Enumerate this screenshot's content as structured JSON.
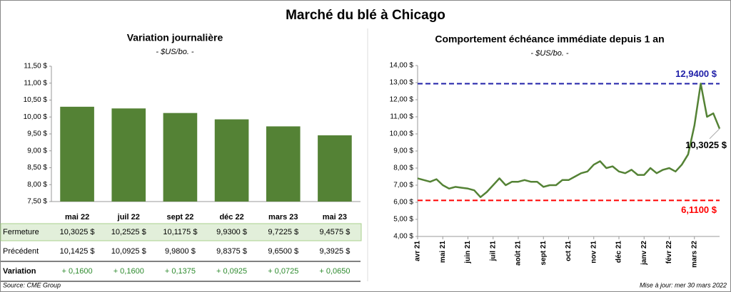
{
  "title": "Marché du blé à Chicago",
  "source": "Source: CME Group",
  "updated": "Mise à jour: mer 30 mars 2022",
  "chart_data": [
    {
      "type": "bar",
      "title": "Variation journalière",
      "subtitle": "- $US/bo. -",
      "color": "#548235",
      "grid": false,
      "categories": [
        "mai 22",
        "juil 22",
        "sept 22",
        "déc 22",
        "mars 23",
        "mai 23"
      ],
      "values": [
        10.3025,
        10.2525,
        10.1175,
        9.93,
        9.7225,
        9.4575
      ],
      "ylim": [
        7.5,
        11.5
      ],
      "yticks": [
        {
          "value": 7.5,
          "label": "7,50 $"
        },
        {
          "value": 8,
          "label": "8,00 $"
        },
        {
          "value": 8.5,
          "label": "8,50 $"
        },
        {
          "value": 9,
          "label": "9,00 $"
        },
        {
          "value": 9.5,
          "label": "9,50 $"
        },
        {
          "value": 10,
          "label": "10,00 $"
        },
        {
          "value": 10.5,
          "label": "10,50 $"
        },
        {
          "value": 11,
          "label": "11,00 $"
        },
        {
          "value": 11.5,
          "label": "11,50 $"
        }
      ],
      "table": {
        "rows": [
          [
            "Fermeture",
            "10,3025  $",
            "10,2525  $",
            "10,1175  $",
            "9,9300  $",
            "9,7225  $",
            "9,4575  $"
          ],
          [
            "Précédent",
            "10,1425  $",
            "10,0925  $",
            "9,9800  $",
            "9,8375  $",
            "9,6500  $",
            "9,3925  $"
          ],
          [
            "Variation",
            "+ 0,1600",
            "+ 0,1600",
            "+ 0,1375",
            "+ 0,0925",
            "+ 0,0725",
            "+ 0,0650"
          ]
        ]
      }
    },
    {
      "type": "line",
      "title": "Comportement  échéance immédiate depuis 1 an",
      "subtitle": "- $US/bo. -",
      "grid": false,
      "categories": [
        "avr 21",
        null,
        null,
        null,
        "mai 21",
        null,
        null,
        null,
        "juin 21",
        null,
        null,
        null,
        "juil 21",
        null,
        null,
        null,
        "août 21",
        null,
        null,
        null,
        "sept 21",
        null,
        null,
        null,
        "oct 21",
        null,
        null,
        null,
        "nov 21",
        null,
        null,
        null,
        "déc 21",
        null,
        null,
        null,
        "janv 22",
        null,
        null,
        null,
        "févr 22",
        null,
        null,
        null,
        "mars 22",
        null,
        null,
        null,
        null
      ],
      "series": [
        {
          "name": "Échéance immédiate",
          "color": "#548235",
          "values": [
            7.4,
            7.3,
            7.2,
            7.35,
            7.0,
            6.8,
            6.9,
            6.85,
            6.8,
            6.7,
            6.3,
            6.6,
            7.0,
            7.4,
            7.0,
            7.2,
            7.2,
            7.3,
            7.2,
            7.2,
            6.9,
            7.0,
            7.0,
            7.3,
            7.3,
            7.5,
            7.7,
            7.8,
            8.2,
            8.4,
            8.0,
            8.1,
            7.8,
            7.7,
            7.9,
            7.6,
            7.6,
            8.0,
            7.7,
            7.9,
            8.0,
            7.8,
            8.2,
            8.8,
            10.5,
            12.94,
            11.0,
            11.2,
            10.3025
          ],
          "value_labels": [
            null,
            null,
            null,
            null,
            null,
            null,
            null,
            null,
            null,
            null,
            null,
            null,
            null,
            null,
            null,
            null,
            null,
            null,
            null,
            null,
            null,
            null,
            null,
            null,
            null,
            null,
            null,
            null,
            null,
            null,
            null,
            null,
            null,
            null,
            null,
            null,
            null,
            null,
            null,
            null,
            null,
            null,
            null,
            null,
            null,
            null,
            null,
            null,
            "10,3025 $"
          ]
        }
      ],
      "reference_lines": [
        {
          "value": 12.94,
          "label": "12,9400 $",
          "color": "#1f1fa8"
        },
        {
          "value": 6.11,
          "label": "6,1100 $",
          "color": "#ff0000"
        }
      ],
      "ylim": [
        4,
        14
      ],
      "yticks": [
        {
          "value": 4,
          "label": "4,00 $"
        },
        {
          "value": 5,
          "label": "5,00 $"
        },
        {
          "value": 6,
          "label": "6,00 $"
        },
        {
          "value": 7,
          "label": "7,00 $"
        },
        {
          "value": 8,
          "label": "8,00 $"
        },
        {
          "value": 9,
          "label": "9,00 $"
        },
        {
          "value": 10,
          "label": "10,00 $"
        },
        {
          "value": 11,
          "label": "11,00 $"
        },
        {
          "value": 12,
          "label": "12,00 $"
        },
        {
          "value": 13,
          "label": "13,00 $"
        },
        {
          "value": 14,
          "label": "14,00 $"
        }
      ]
    }
  ]
}
